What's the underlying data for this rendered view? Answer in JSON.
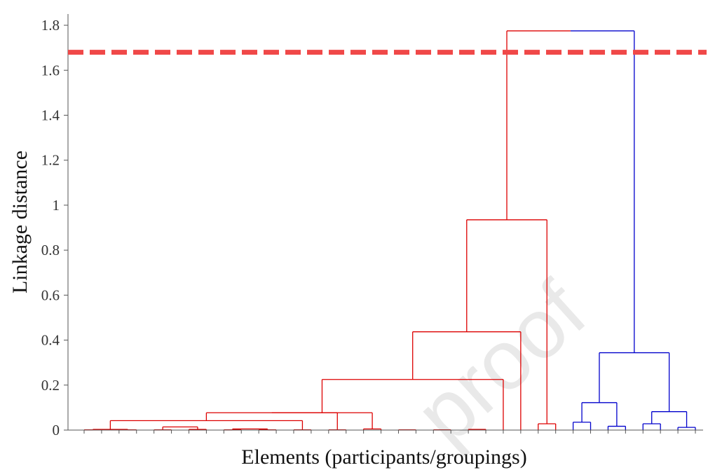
{
  "chart_data": {
    "type": "dendrogram",
    "xlabel": "Elements (participants/groupings)",
    "ylabel": "Linkage distance",
    "ylim": [
      0,
      1.85
    ],
    "yticks": [
      {
        "value": 0,
        "label": "0"
      },
      {
        "value": 0.2,
        "label": "0.2"
      },
      {
        "value": 0.4,
        "label": "0.4"
      },
      {
        "value": 0.6,
        "label": "0.6"
      },
      {
        "value": 0.8,
        "label": "0.8"
      },
      {
        "value": 1,
        "label": "1"
      },
      {
        "value": 1.2,
        "label": "1.2"
      },
      {
        "value": 1.4,
        "label": "1.4"
      },
      {
        "value": 1.6,
        "label": "1.6"
      },
      {
        "value": 1.8,
        "label": "1.8"
      }
    ],
    "leaf_count": 36,
    "cut_line": {
      "value": 1.68,
      "color": "#f04848",
      "style": "dashed"
    },
    "clusters": [
      {
        "color": "#dd0000",
        "leaves": [
          0,
          27
        ]
      },
      {
        "color": "#0000cc",
        "leaves": [
          28,
          35
        ]
      }
    ],
    "links": [
      {
        "left": 0,
        "right": 1,
        "height": 0.001,
        "color": "#dd0000"
      },
      {
        "left": 2,
        "right": 3,
        "height": 0.001,
        "color": "#dd0000"
      },
      {
        "left": 4,
        "right": 5,
        "height": 0.001,
        "color": "#dd0000"
      },
      {
        "left": 6,
        "right": 7,
        "height": 0.003,
        "color": "#dd0000"
      },
      {
        "left": 8,
        "right": 9,
        "height": 0.001,
        "color": "#dd0000"
      },
      {
        "left": 10,
        "right": 11,
        "height": 0.001,
        "color": "#dd0000"
      },
      {
        "left": 12,
        "right": 13,
        "height": 0.001,
        "color": "#dd0000"
      },
      {
        "left": 14,
        "right": 15,
        "height": 0.001,
        "color": "#dd0000"
      },
      {
        "left": 16,
        "right": 17,
        "height": 0.005,
        "color": "#dd0000"
      },
      {
        "left": 18,
        "right": 19,
        "height": 0.001,
        "color": "#dd0000"
      },
      {
        "left": 20,
        "right": 21,
        "height": 0.001,
        "color": "#dd0000"
      },
      {
        "left": 22,
        "right": 23,
        "height": 0.003,
        "color": "#dd0000"
      },
      {
        "left": 26,
        "right": 27,
        "height": 0.028,
        "color": "#dd0000"
      },
      {
        "left": 28,
        "right": 29,
        "height": 0.035,
        "color": "#0000cc"
      },
      {
        "left": 30,
        "right": 31,
        "height": 0.017,
        "color": "#0000cc"
      },
      {
        "left": 32,
        "right": 33,
        "height": 0.028,
        "color": "#0000cc"
      },
      {
        "left": 34,
        "right": 35,
        "height": 0.012,
        "color": "#0000cc"
      },
      {
        "left": 36,
        "right": 37,
        "height": 0.003,
        "color": "#dd0000"
      },
      {
        "left": 38,
        "right": 39,
        "height": 0.014,
        "color": "#dd0000"
      },
      {
        "left": 40,
        "right": 41,
        "height": 0.005,
        "color": "#dd0000"
      },
      {
        "left": 42,
        "right": 53,
        "height": 0.042,
        "color": "#dd0000"
      },
      {
        "left": 56,
        "right": 43,
        "height": 0.077,
        "color": "#dd0000"
      },
      {
        "left": 57,
        "right": 44,
        "height": 0.077,
        "color": "#dd0000"
      },
      {
        "left": 58,
        "right": 24,
        "height": 0.225,
        "color": "#dd0000"
      },
      {
        "left": 59,
        "right": 25,
        "height": 0.437,
        "color": "#dd0000"
      },
      {
        "left": 60,
        "right": 48,
        "height": 0.935,
        "color": "#dd0000"
      },
      {
        "left": 49,
        "right": 50,
        "height": 0.122,
        "color": "#0000cc"
      },
      {
        "left": 51,
        "right": 52,
        "height": 0.082,
        "color": "#0000cc"
      },
      {
        "left": 62,
        "right": 63,
        "height": 0.344,
        "color": "#0000cc"
      },
      {
        "left": 61,
        "right": 64,
        "height": 1.775,
        "color": "#dd0000",
        "right_color": "#0000cc"
      }
    ],
    "watermark": "proof"
  }
}
